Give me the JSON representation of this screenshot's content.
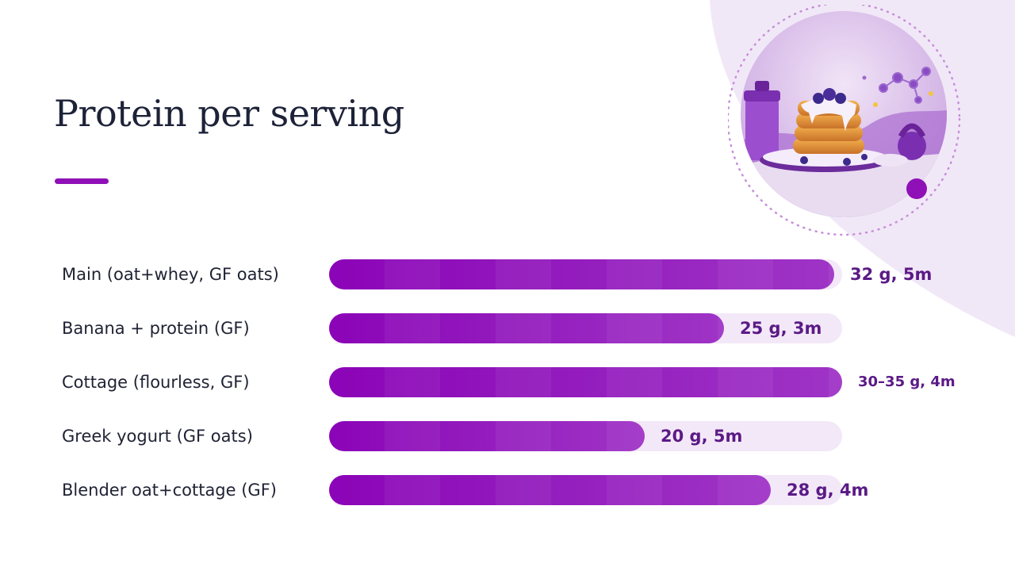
{
  "slide": {
    "title": "Protein per serving"
  },
  "colors": {
    "accent": "#8f10b7",
    "bar_start": "#8b04b8",
    "bar_end": "#a033c6",
    "track": "#f3e8f8",
    "value_text": "#5b1a86",
    "title_text": "#1d2238",
    "background_blob": "#f1e8f7"
  },
  "illustration": {
    "icon": "protein-pancakes-illustration"
  },
  "chart_data": {
    "type": "bar",
    "orientation": "horizontal",
    "categories": [
      "Main (oat+whey, GF oats)",
      "Banana + protein (GF)",
      "Cottage (flourless, GF)",
      "Greek yogurt (GF oats)",
      "Blender oat+cottage (GF)"
    ],
    "values": [
      32,
      25,
      32.5,
      20,
      28
    ],
    "data_labels": [
      "32 g, 5m",
      "25 g, 3m",
      "30–35 g, 4m",
      "20 g, 5m",
      "28 g, 4m"
    ],
    "title": "Protein per serving",
    "xlabel": "",
    "ylabel": "",
    "xlim": [
      0,
      32.5
    ],
    "grid": false,
    "legend": "none"
  }
}
